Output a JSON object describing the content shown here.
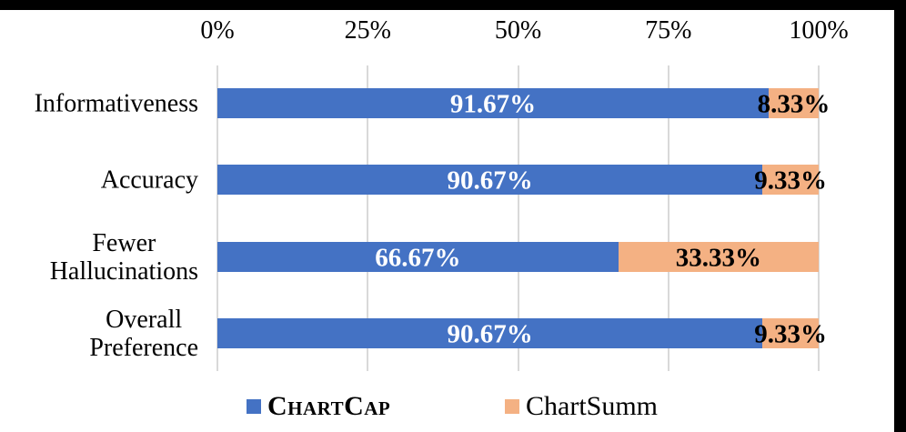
{
  "figure": {
    "border_color": "#000000",
    "background": "#ffffff"
  },
  "chart_data": {
    "type": "bar",
    "orientation": "horizontal",
    "stacked": true,
    "title": "",
    "categories": [
      [
        "Informativeness"
      ],
      [
        "Accuracy"
      ],
      [
        "Fewer",
        "Hallucinations"
      ],
      [
        "Overall",
        "Preference"
      ]
    ],
    "series": [
      {
        "name": "ChartCap",
        "color": "#4472C4",
        "values": [
          91.67,
          90.67,
          66.67,
          90.67
        ],
        "labels": [
          "91.67%",
          "90.67%",
          "66.67%",
          "90.67%"
        ],
        "label_color": "#FFFFFF"
      },
      {
        "name": "ChartSumm",
        "color": "#F4B183",
        "values": [
          8.33,
          9.33,
          33.33,
          9.33
        ],
        "labels": [
          "8.33%",
          "9.33%",
          "33.33%",
          "9.33%"
        ],
        "label_color": "#000000"
      }
    ],
    "x_axis": {
      "position": "top",
      "tick_labels": [
        "0%",
        "25%",
        "50%",
        "75%",
        "100%"
      ],
      "tick_values": [
        0,
        25,
        50,
        75,
        100
      ]
    },
    "xlim": [
      0,
      100
    ],
    "grid": true,
    "gridline_color": "#D9D9D9",
    "legend_position": "bottom",
    "legend": [
      {
        "label": "ChartCap",
        "swatch_color": "#4472C4",
        "small_caps": true
      },
      {
        "label": "ChartSumm",
        "swatch_color": "#F4B183",
        "small_caps": false
      }
    ]
  }
}
